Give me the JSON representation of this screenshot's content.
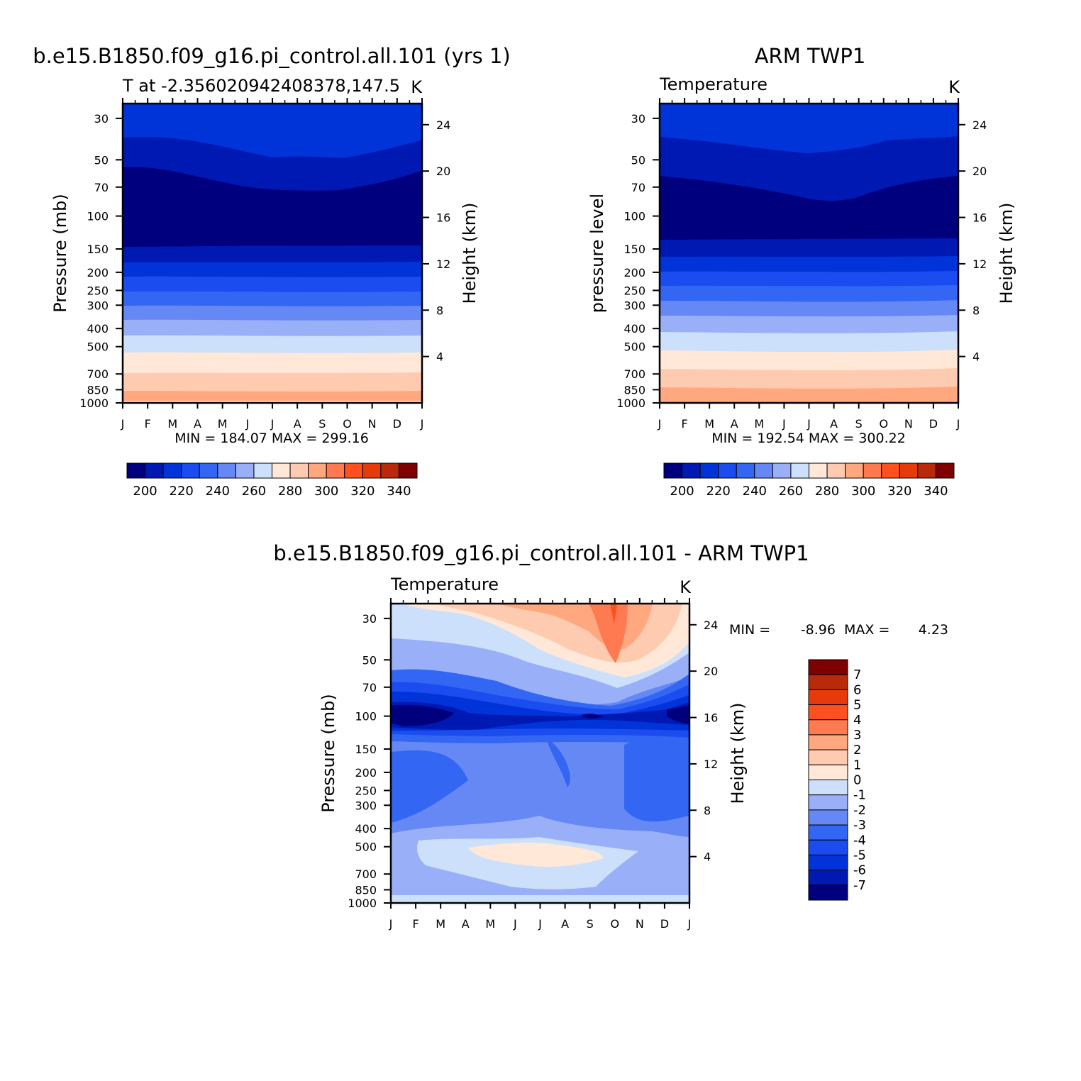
{
  "chart_data": [
    {
      "type": "heatmap",
      "title": "b.e15.B1850.f09_g16.pi_control.all.101 (yrs 1)",
      "subtitle_left": "T at -2.356020942408378,147.5",
      "units": "K",
      "ylabel": "Pressure (mb)",
      "ylabel_right": "Height (km)",
      "x_ticks": [
        "J",
        "F",
        "M",
        "A",
        "M",
        "J",
        "J",
        "A",
        "S",
        "O",
        "N",
        "D",
        "J"
      ],
      "y_ticks": [
        "30",
        "50",
        "70",
        "100",
        "150",
        "200",
        "250",
        "300",
        "400",
        "500",
        "700",
        "850",
        "1000"
      ],
      "y_ticks_right": [
        "24",
        "20",
        "16",
        "12",
        "8",
        "4"
      ],
      "ylim": [
        1000,
        25
      ],
      "y_scale": "log",
      "min_max": "MIN =  184.07  MAX =  299.16",
      "colorbar_labels": [
        "200",
        "220",
        "240",
        "260",
        "280",
        "300",
        "320",
        "340"
      ],
      "colors": [
        "#00007f",
        "#0019b2",
        "#0033d8",
        "#1a4cf0",
        "#3366f2",
        "#6688f5",
        "#99aff8",
        "#cce0fb",
        "#ffe8d8",
        "#ffcbb0",
        "#ffa880",
        "#ff7a50",
        "#ff5020",
        "#e53a0a",
        "#b82a0a",
        "#7f0000"
      ]
    },
    {
      "type": "heatmap",
      "title": "ARM TWP1",
      "subtitle_left": "Temperature",
      "units": "K",
      "ylabel": "pressure level",
      "ylabel_right": "Height (km)",
      "x_ticks": [
        "J",
        "F",
        "M",
        "A",
        "M",
        "J",
        "J",
        "A",
        "S",
        "O",
        "N",
        "D",
        "J"
      ],
      "y_ticks": [
        "30",
        "50",
        "70",
        "100",
        "150",
        "200",
        "250",
        "300",
        "400",
        "500",
        "700",
        "850",
        "1000"
      ],
      "y_ticks_right": [
        "24",
        "20",
        "16",
        "12",
        "8",
        "4"
      ],
      "ylim": [
        1000,
        25
      ],
      "y_scale": "log",
      "min_max": "MIN =  192.54  MAX =  300.22",
      "colorbar_labels": [
        "200",
        "220",
        "240",
        "260",
        "280",
        "300",
        "320",
        "340"
      ]
    },
    {
      "type": "heatmap",
      "title": "b.e15.B1850.f09_g16.pi_control.all.101 - ARM TWP1",
      "subtitle_left": "Temperature",
      "units": "K",
      "ylabel": "Pressure (mb)",
      "ylabel_right": "Height (km)",
      "x_ticks": [
        "J",
        "F",
        "M",
        "A",
        "M",
        "J",
        "J",
        "A",
        "S",
        "O",
        "N",
        "D",
        "J"
      ],
      "y_ticks": [
        "30",
        "50",
        "70",
        "100",
        "150",
        "200",
        "250",
        "300",
        "400",
        "500",
        "700",
        "850",
        "1000"
      ],
      "y_ticks_right": [
        "24",
        "20",
        "16",
        "12",
        "8",
        "4"
      ],
      "ylim": [
        1000,
        25
      ],
      "y_scale": "log",
      "min_max_min_label": "MIN =",
      "min_max_min": "-8.96",
      "min_max_max_label": "MAX =",
      "min_max_max": "4.23",
      "colorbar_labels": [
        "7",
        "6",
        "5",
        "4",
        "3",
        "2",
        "1",
        "0",
        "-1",
        "-2",
        "-3",
        "-4",
        "-5",
        "-6",
        "-7"
      ],
      "colors": [
        "#7f0000",
        "#b82a0a",
        "#e53a0a",
        "#ff5020",
        "#ff7a50",
        "#ffa880",
        "#ffcbb0",
        "#ffe8d8",
        "#cce0fb",
        "#99aff8",
        "#6688f5",
        "#3366f2",
        "#1a4cf0",
        "#0033d8",
        "#0019b2",
        "#00007f"
      ]
    }
  ]
}
